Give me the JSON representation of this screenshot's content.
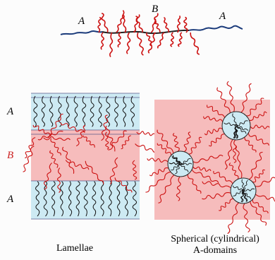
{
  "molecule": {
    "label_left": "A",
    "label_center": "B",
    "label_right": "A"
  },
  "lamellae": {
    "label_top": "A",
    "label_middle": "B",
    "label_bottom": "A",
    "caption": "Lamellae"
  },
  "spherical": {
    "caption_line1": "Spherical (cylindrical)",
    "caption_line2": "A-domains"
  },
  "colors": {
    "a_chain": "#1a3a7a",
    "b_chain": "#cc1111",
    "a_domain": "#cdeaf3",
    "b_domain": "#f6bcbc",
    "b_label": "#cc2222"
  }
}
